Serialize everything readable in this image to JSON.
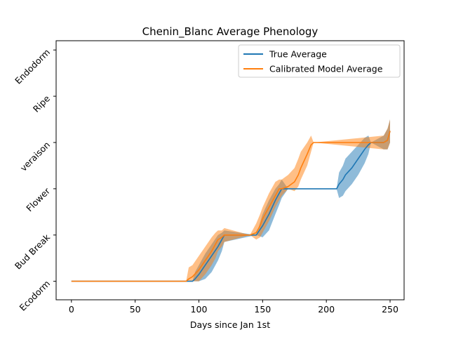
{
  "chart_data": {
    "type": "line",
    "title": "Chenin_Blanc Average Phenology",
    "xlabel": "Days since Jan 1st",
    "ylabel": "",
    "xlim": [
      -12,
      261
    ],
    "ylim": [
      -0.4,
      5.2
    ],
    "xticks": [
      0,
      50,
      100,
      150,
      200,
      250
    ],
    "yticks": [
      {
        "value": 0,
        "label": "Ecodorm"
      },
      {
        "value": 1,
        "label": "Bud Break"
      },
      {
        "value": 2,
        "label": "Flower"
      },
      {
        "value": 3,
        "label": "veraison"
      },
      {
        "value": 4,
        "label": "Ripe"
      },
      {
        "value": 5,
        "label": "Endodorm"
      }
    ],
    "legend_position": "top-right",
    "series": [
      {
        "name": "True Average",
        "color": "#1f77b4",
        "x": [
          0,
          95,
          97,
          100,
          105,
          110,
          115,
          118,
          120,
          145,
          150,
          155,
          160,
          163,
          165,
          170,
          208,
          210,
          213,
          215,
          220,
          225,
          230,
          233,
          235,
          245,
          248,
          250
        ],
        "y": [
          0,
          0,
          0.05,
          0.15,
          0.35,
          0.55,
          0.75,
          0.9,
          1.0,
          1.0,
          1.2,
          1.45,
          1.75,
          1.9,
          2.0,
          2.0,
          2.0,
          2.1,
          2.2,
          2.3,
          2.45,
          2.65,
          2.85,
          2.95,
          3.0,
          3.0,
          3.05,
          3.25
        ],
        "band_lower": [
          0,
          0,
          0,
          0,
          0.05,
          0.2,
          0.45,
          0.65,
          0.85,
          1.0,
          0.95,
          1.1,
          1.45,
          1.65,
          1.8,
          2.0,
          2.0,
          1.8,
          1.85,
          1.95,
          2.1,
          2.3,
          2.55,
          2.75,
          3.0,
          2.85,
          2.85,
          3.0
        ],
        "band_upper": [
          0,
          0,
          0.2,
          0.35,
          0.6,
          0.8,
          1.0,
          1.05,
          1.1,
          1.0,
          1.45,
          1.75,
          2.0,
          2.1,
          2.2,
          2.0,
          2.0,
          2.35,
          2.5,
          2.65,
          2.8,
          2.95,
          3.1,
          3.15,
          3.0,
          3.15,
          3.3,
          3.5
        ]
      },
      {
        "name": "Calibrated Model Average",
        "color": "#ff7f0e",
        "x": [
          0,
          90,
          92,
          95,
          100,
          105,
          110,
          113,
          115,
          118,
          120,
          140,
          145,
          148,
          150,
          155,
          160,
          163,
          165,
          170,
          175,
          178,
          180,
          185,
          188,
          190,
          245,
          248,
          250
        ],
        "y": [
          0,
          0,
          0.05,
          0.1,
          0.25,
          0.45,
          0.65,
          0.8,
          0.9,
          0.95,
          1.0,
          1.0,
          1.05,
          1.2,
          1.35,
          1.6,
          1.85,
          2.0,
          2.0,
          2.05,
          2.15,
          2.3,
          2.45,
          2.75,
          2.95,
          3.0,
          3.0,
          3.05,
          3.25
        ],
        "band_lower": [
          0,
          0,
          0,
          0,
          0,
          0.15,
          0.35,
          0.5,
          0.65,
          0.75,
          0.85,
          1.0,
          0.9,
          0.95,
          1.05,
          1.3,
          1.6,
          1.75,
          1.85,
          2.0,
          1.95,
          2.05,
          2.2,
          2.5,
          2.8,
          3.0,
          2.85,
          2.85,
          3.0
        ],
        "band_upper": [
          0,
          0,
          0.3,
          0.35,
          0.55,
          0.75,
          0.95,
          1.05,
          1.1,
          1.1,
          1.15,
          1.0,
          1.25,
          1.45,
          1.6,
          1.9,
          2.15,
          2.2,
          2.2,
          2.3,
          2.45,
          2.65,
          2.8,
          3.0,
          3.15,
          3.0,
          3.15,
          3.3,
          3.5
        ]
      }
    ]
  }
}
